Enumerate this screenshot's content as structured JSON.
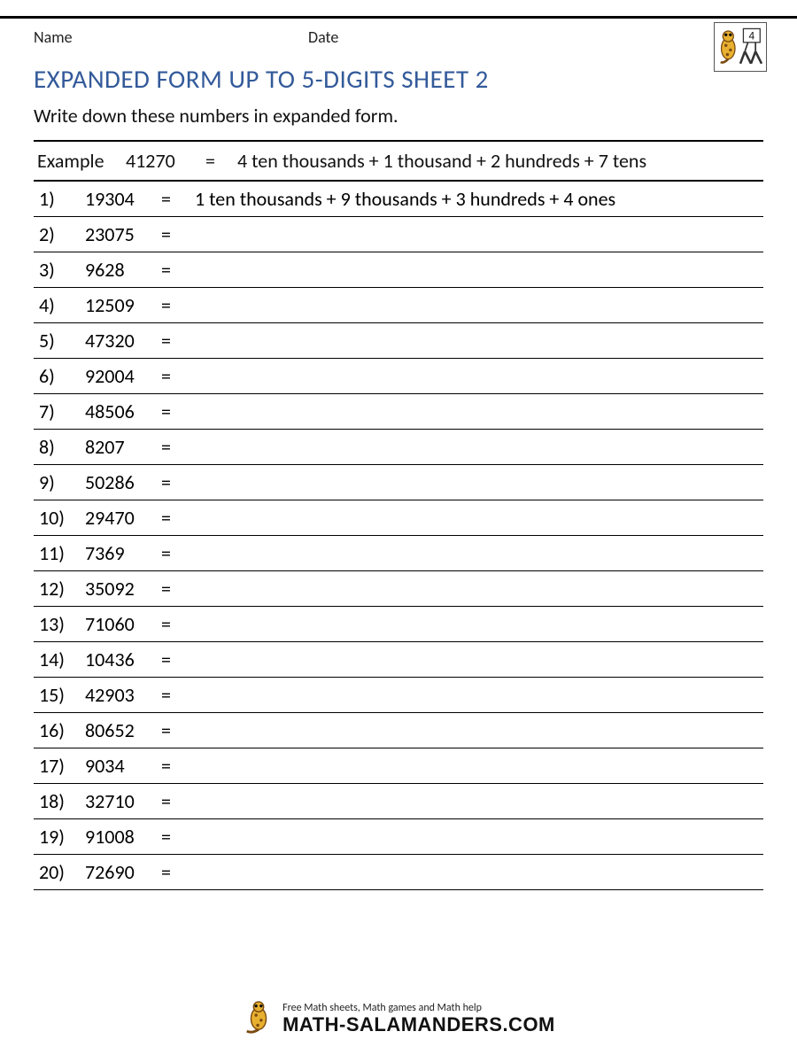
{
  "header": {
    "name_label": "Name",
    "date_label": "Date"
  },
  "title": "EXPANDED FORM UP TO 5-DIGITS SHEET 2",
  "instructions": "Write down these numbers in expanded form.",
  "example": {
    "label": "Example",
    "number": "41270",
    "equals": "=",
    "answer": "4 ten thousands + 1 thousand + 2 hundreds + 7 tens"
  },
  "equals_sign": "=",
  "problems": [
    {
      "index": "1)",
      "number": "19304",
      "answer": "1 ten thousands + 9 thousands + 3 hundreds + 4 ones"
    },
    {
      "index": "2)",
      "number": "23075",
      "answer": ""
    },
    {
      "index": "3)",
      "number": "9628",
      "answer": ""
    },
    {
      "index": "4)",
      "number": "12509",
      "answer": ""
    },
    {
      "index": "5)",
      "number": "47320",
      "answer": ""
    },
    {
      "index": "6)",
      "number": "92004",
      "answer": ""
    },
    {
      "index": "7)",
      "number": "48506",
      "answer": ""
    },
    {
      "index": "8)",
      "number": "8207",
      "answer": ""
    },
    {
      "index": "9)",
      "number": "50286",
      "answer": ""
    },
    {
      "index": "10)",
      "number": "29470",
      "answer": ""
    },
    {
      "index": "11)",
      "number": "7369",
      "answer": ""
    },
    {
      "index": "12)",
      "number": "35092",
      "answer": ""
    },
    {
      "index": "13)",
      "number": "71060",
      "answer": ""
    },
    {
      "index": "14)",
      "number": "10436",
      "answer": ""
    },
    {
      "index": "15)",
      "number": "42903",
      "answer": ""
    },
    {
      "index": "16)",
      "number": "80652",
      "answer": ""
    },
    {
      "index": "17)",
      "number": "9034",
      "answer": ""
    },
    {
      "index": "18)",
      "number": "32710",
      "answer": ""
    },
    {
      "index": "19)",
      "number": "91008",
      "answer": ""
    },
    {
      "index": "20)",
      "number": "72690",
      "answer": ""
    }
  ],
  "footer": {
    "tagline": "Free Math sheets, Math games and Math help",
    "brand": "MATH-SALAMANDERS.COM"
  },
  "colors": {
    "title": "#335a9a",
    "text": "#111111",
    "rule": "#000000",
    "background": "#ffffff"
  }
}
